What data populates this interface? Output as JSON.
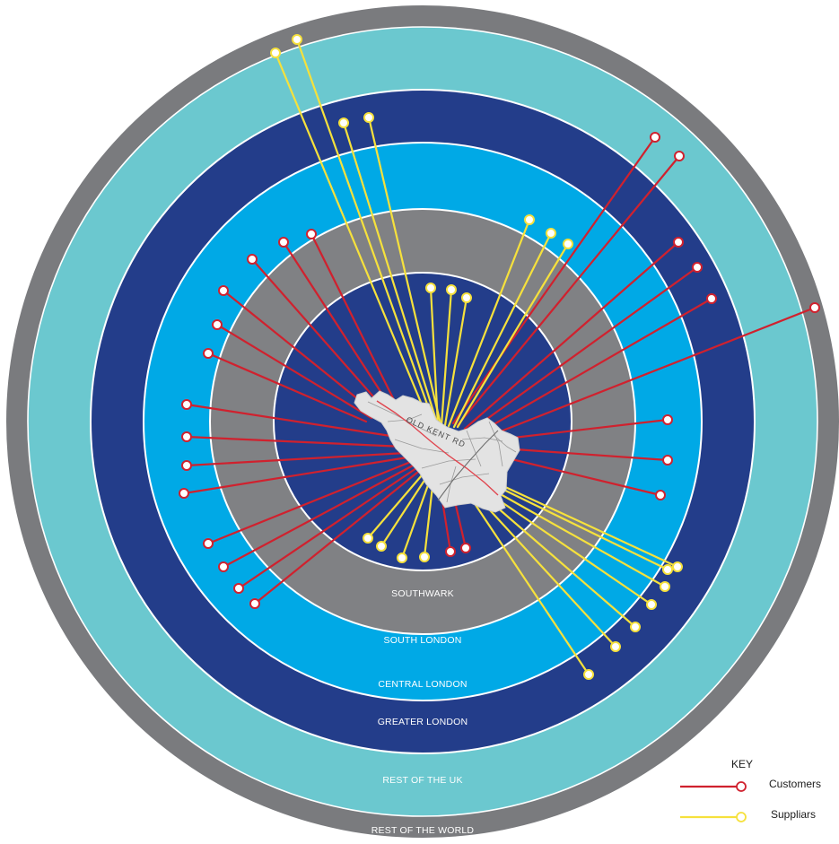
{
  "colors": {
    "rest_of_world": "#7a7b7e",
    "rest_of_uk": "#6bc8cf",
    "greater_london": "#233d8a",
    "central_london": "#00a9e6",
    "south_london": "#808184",
    "southwark": "#233d8a",
    "ring_border": "#ffffff",
    "customers_line": "#d0212e",
    "suppliers_line": "#f6e13c",
    "map_fill": "#e3e3e3",
    "map_red_road": "#e0464f"
  },
  "rings": [
    {
      "id": "rest-of-the-world",
      "label": "REST OF THE WORLD",
      "color_key": "rest_of_world",
      "rank": 6
    },
    {
      "id": "rest-of-the-uk",
      "label": "REST OF THE UK",
      "color_key": "rest_of_uk",
      "rank": 5
    },
    {
      "id": "greater-london",
      "label": "GREATER LONDON",
      "color_key": "greater_london",
      "rank": 4
    },
    {
      "id": "central-london",
      "label": "CENTRAL LONDON",
      "color_key": "central_london",
      "rank": 3
    },
    {
      "id": "south-london",
      "label": "SOUTH LONDON",
      "color_key": "south_london",
      "rank": 2
    },
    {
      "id": "southwark",
      "label": "SOUTHWARK",
      "color_key": "southwark",
      "rank": 1
    }
  ],
  "map": {
    "road_label": "OLD KENT RD"
  },
  "key": {
    "title": "KEY",
    "customers_label": "Customers",
    "suppliers_label": "Suppliars"
  }
}
